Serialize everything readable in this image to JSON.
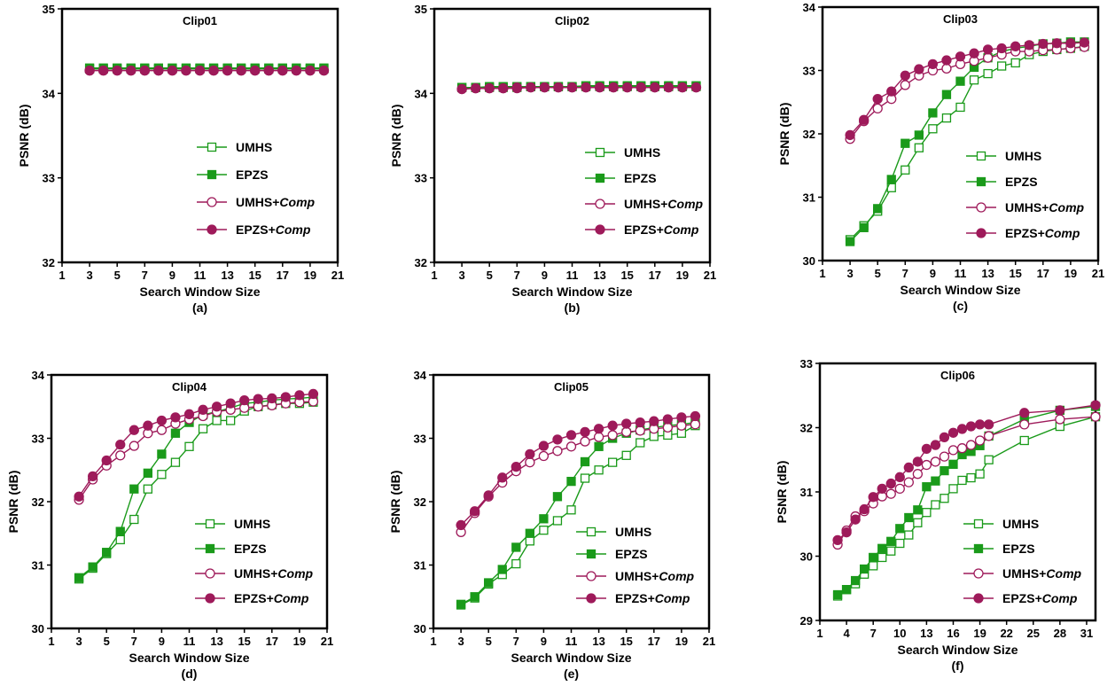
{
  "colors": {
    "green": "#1a9a1a",
    "magenta": "#9e1a5a"
  },
  "chart_data": [
    {
      "type": "line",
      "title": "Clip01",
      "caption": "(a)",
      "xlabel": "Search Window Size",
      "ylabel": "PSNR (dB)",
      "xlim": [
        1,
        21
      ],
      "ylim": [
        32,
        35
      ],
      "xticks": [
        1,
        3,
        5,
        7,
        9,
        11,
        13,
        15,
        17,
        19,
        21
      ],
      "yticks": [
        32,
        33,
        34,
        35
      ],
      "legend": {
        "placement": "center-right",
        "entries": [
          "UMHS",
          "EPZS",
          "UMHS+Comp",
          "EPZS+Comp"
        ]
      },
      "x": [
        3,
        4,
        5,
        6,
        7,
        8,
        9,
        10,
        11,
        12,
        13,
        14,
        15,
        16,
        17,
        18,
        19,
        20
      ],
      "series": [
        {
          "name": "UMHS",
          "values": [
            34.29,
            34.29,
            34.29,
            34.29,
            34.29,
            34.29,
            34.29,
            34.29,
            34.29,
            34.29,
            34.29,
            34.29,
            34.29,
            34.29,
            34.29,
            34.29,
            34.29,
            34.29
          ]
        },
        {
          "name": "EPZS",
          "values": [
            34.3,
            34.3,
            34.3,
            34.3,
            34.3,
            34.3,
            34.3,
            34.3,
            34.3,
            34.3,
            34.3,
            34.3,
            34.3,
            34.3,
            34.3,
            34.3,
            34.3,
            34.3
          ]
        },
        {
          "name": "UMHS+Comp",
          "values": [
            34.27,
            34.27,
            34.27,
            34.27,
            34.27,
            34.27,
            34.27,
            34.27,
            34.27,
            34.27,
            34.27,
            34.27,
            34.27,
            34.27,
            34.27,
            34.27,
            34.27,
            34.27
          ]
        },
        {
          "name": "EPZS+Comp",
          "values": [
            34.27,
            34.27,
            34.27,
            34.27,
            34.27,
            34.27,
            34.27,
            34.27,
            34.27,
            34.27,
            34.27,
            34.27,
            34.27,
            34.27,
            34.27,
            34.27,
            34.27,
            34.27
          ]
        }
      ]
    },
    {
      "type": "line",
      "title": "Clip02",
      "caption": "(b)",
      "xlabel": "Search Window Size",
      "ylabel": "PSNR (dB)",
      "xlim": [
        1,
        21
      ],
      "ylim": [
        32,
        35
      ],
      "xticks": [
        1,
        3,
        5,
        7,
        9,
        11,
        13,
        15,
        17,
        19,
        21
      ],
      "yticks": [
        32,
        33,
        34,
        35
      ],
      "legend": {
        "placement": "center-right",
        "entries": [
          "UMHS",
          "EPZS",
          "UMHS+Comp",
          "EPZS+Comp"
        ]
      },
      "x": [
        3,
        4,
        5,
        6,
        7,
        8,
        9,
        10,
        11,
        12,
        13,
        14,
        15,
        16,
        17,
        18,
        19,
        20
      ],
      "series": [
        {
          "name": "UMHS",
          "values": [
            34.07,
            34.07,
            34.07,
            34.07,
            34.07,
            34.08,
            34.08,
            34.08,
            34.08,
            34.08,
            34.08,
            34.08,
            34.08,
            34.08,
            34.08,
            34.08,
            34.08,
            34.08
          ]
        },
        {
          "name": "EPZS",
          "values": [
            34.07,
            34.07,
            34.08,
            34.08,
            34.08,
            34.08,
            34.08,
            34.08,
            34.08,
            34.09,
            34.09,
            34.09,
            34.09,
            34.09,
            34.09,
            34.09,
            34.09,
            34.09
          ]
        },
        {
          "name": "UMHS+Comp",
          "values": [
            34.05,
            34.06,
            34.06,
            34.06,
            34.06,
            34.07,
            34.07,
            34.07,
            34.07,
            34.07,
            34.07,
            34.07,
            34.07,
            34.07,
            34.07,
            34.07,
            34.07,
            34.07
          ]
        },
        {
          "name": "EPZS+Comp",
          "values": [
            34.05,
            34.06,
            34.06,
            34.06,
            34.07,
            34.07,
            34.07,
            34.07,
            34.07,
            34.07,
            34.07,
            34.07,
            34.07,
            34.07,
            34.07,
            34.07,
            34.07,
            34.07
          ]
        }
      ]
    },
    {
      "type": "line",
      "title": "Clip03",
      "caption": "(c)",
      "xlabel": "Search Window Size",
      "ylabel": "PSNR (dB)",
      "xlim": [
        1,
        21
      ],
      "ylim": [
        30,
        34
      ],
      "xticks": [
        1,
        3,
        5,
        7,
        9,
        11,
        13,
        15,
        17,
        19,
        21
      ],
      "yticks": [
        30,
        31,
        32,
        33,
        34
      ],
      "legend": {
        "placement": "lower-right",
        "entries": [
          "UMHS",
          "EPZS",
          "UMHS+Comp",
          "EPZS+Comp"
        ]
      },
      "x": [
        3,
        4,
        5,
        6,
        7,
        8,
        9,
        10,
        11,
        12,
        13,
        14,
        15,
        16,
        17,
        18,
        19,
        20
      ],
      "series": [
        {
          "name": "UMHS",
          "values": [
            30.33,
            30.55,
            30.78,
            31.15,
            31.43,
            31.78,
            32.08,
            32.25,
            32.42,
            32.85,
            32.95,
            33.07,
            33.12,
            33.25,
            33.3,
            33.33,
            33.35,
            33.38
          ]
        },
        {
          "name": "EPZS",
          "values": [
            30.3,
            30.52,
            30.82,
            31.28,
            31.85,
            31.98,
            32.33,
            32.62,
            32.83,
            33.05,
            33.2,
            33.3,
            33.35,
            33.38,
            33.42,
            33.43,
            33.45,
            33.45
          ]
        },
        {
          "name": "UMHS+Comp",
          "values": [
            31.92,
            32.2,
            32.4,
            32.55,
            32.77,
            32.92,
            33.0,
            33.03,
            33.1,
            33.15,
            33.2,
            33.25,
            33.3,
            33.3,
            33.32,
            33.33,
            33.35,
            33.37
          ]
        },
        {
          "name": "EPZS+Comp",
          "values": [
            31.98,
            32.22,
            32.55,
            32.67,
            32.92,
            33.02,
            33.1,
            33.16,
            33.22,
            33.27,
            33.33,
            33.35,
            33.38,
            33.4,
            33.42,
            33.43,
            33.43,
            33.44
          ]
        }
      ]
    },
    {
      "type": "line",
      "title": "Clip04",
      "caption": "(d)",
      "xlabel": "Search Window Size",
      "ylabel": "PSNR (dB)",
      "xlim": [
        1,
        21
      ],
      "ylim": [
        30,
        34
      ],
      "xticks": [
        1,
        3,
        5,
        7,
        9,
        11,
        13,
        15,
        17,
        19,
        21
      ],
      "yticks": [
        30,
        31,
        32,
        33,
        34
      ],
      "legend": {
        "placement": "lower-right",
        "entries": [
          "UMHS",
          "EPZS",
          "UMHS+Comp",
          "EPZS+Comp"
        ]
      },
      "x": [
        3,
        4,
        5,
        6,
        7,
        8,
        9,
        10,
        11,
        12,
        13,
        14,
        15,
        16,
        17,
        18,
        19,
        20
      ],
      "series": [
        {
          "name": "UMHS",
          "values": [
            30.78,
            30.95,
            31.18,
            31.4,
            31.72,
            32.2,
            32.43,
            32.62,
            32.87,
            33.15,
            33.28,
            33.28,
            33.43,
            33.5,
            33.53,
            33.55,
            33.55,
            33.57
          ]
        },
        {
          "name": "EPZS",
          "values": [
            30.8,
            30.97,
            31.2,
            31.53,
            32.2,
            32.45,
            32.75,
            33.08,
            33.25,
            33.37,
            33.42,
            33.48,
            33.55,
            33.57,
            33.6,
            33.62,
            33.63,
            33.65
          ]
        },
        {
          "name": "UMHS+Comp",
          "values": [
            32.03,
            32.35,
            32.57,
            32.73,
            32.88,
            33.08,
            33.13,
            33.23,
            33.3,
            33.35,
            33.42,
            33.45,
            33.48,
            33.5,
            33.52,
            33.55,
            33.57,
            33.58
          ]
        },
        {
          "name": "EPZS+Comp",
          "values": [
            32.08,
            32.4,
            32.65,
            32.9,
            33.13,
            33.2,
            33.28,
            33.33,
            33.38,
            33.45,
            33.5,
            33.55,
            33.6,
            33.62,
            33.63,
            33.65,
            33.68,
            33.7
          ]
        }
      ]
    },
    {
      "type": "line",
      "title": "Clip05",
      "caption": "(e)",
      "xlabel": "Search Window Size",
      "ylabel": "PSNR (dB)",
      "xlim": [
        1,
        21
      ],
      "ylim": [
        30,
        34
      ],
      "xticks": [
        1,
        3,
        5,
        7,
        9,
        11,
        13,
        15,
        17,
        19,
        21
      ],
      "yticks": [
        30,
        31,
        32,
        33,
        34
      ],
      "legend": {
        "placement": "lower-right",
        "entries": [
          "UMHS",
          "EPZS",
          "UMHS+Comp",
          "EPZS+Comp"
        ]
      },
      "x": [
        3,
        4,
        5,
        6,
        7,
        8,
        9,
        10,
        11,
        12,
        13,
        14,
        15,
        16,
        17,
        18,
        19,
        20
      ],
      "series": [
        {
          "name": "UMHS",
          "values": [
            30.37,
            30.48,
            30.7,
            30.85,
            31.02,
            31.38,
            31.55,
            31.7,
            31.87,
            32.37,
            32.5,
            32.62,
            32.73,
            32.93,
            33.03,
            33.05,
            33.08,
            33.2
          ]
        },
        {
          "name": "EPZS",
          "values": [
            30.38,
            30.5,
            30.72,
            30.93,
            31.28,
            31.5,
            31.73,
            32.08,
            32.32,
            32.63,
            32.87,
            33.0,
            33.08,
            33.13,
            33.17,
            33.2,
            33.22,
            33.25
          ]
        },
        {
          "name": "UMHS+Comp",
          "values": [
            31.52,
            31.82,
            32.08,
            32.3,
            32.48,
            32.62,
            32.72,
            32.8,
            32.87,
            32.95,
            33.02,
            33.05,
            33.1,
            33.12,
            33.15,
            33.17,
            33.2,
            33.22
          ]
        },
        {
          "name": "EPZS+Comp",
          "values": [
            31.63,
            31.85,
            32.1,
            32.38,
            32.55,
            32.75,
            32.88,
            32.98,
            33.05,
            33.1,
            33.15,
            33.2,
            33.23,
            33.25,
            33.27,
            33.3,
            33.33,
            33.35
          ]
        }
      ]
    },
    {
      "type": "line",
      "title": "Clip06",
      "caption": "(f)",
      "xlabel": "Search Window Size",
      "ylabel": "PSNR (dB)",
      "xlim": [
        1,
        32
      ],
      "ylim": [
        29,
        33
      ],
      "xticks": [
        1,
        4,
        7,
        10,
        13,
        16,
        19,
        22,
        25,
        28,
        31
      ],
      "yticks": [
        29,
        30,
        31,
        32,
        33
      ],
      "legend": {
        "placement": "lower-right",
        "entries": [
          "UMHS",
          "EPZS",
          "UMHS+Comp",
          "EPZS+Comp"
        ]
      },
      "x": [
        3,
        4,
        5,
        6,
        7,
        8,
        9,
        10,
        11,
        12,
        13,
        14,
        15,
        16,
        17,
        18,
        19,
        20,
        24,
        28,
        32
      ],
      "series": [
        {
          "name": "UMHS",
          "values": [
            29.38,
            29.48,
            29.57,
            29.72,
            29.85,
            29.98,
            30.08,
            30.2,
            30.33,
            30.52,
            30.68,
            30.8,
            30.9,
            31.05,
            31.18,
            31.22,
            31.28,
            31.5,
            31.8,
            32.02,
            32.17
          ]
        },
        {
          "name": "EPZS",
          "values": [
            29.4,
            29.48,
            29.62,
            29.8,
            29.98,
            30.12,
            30.23,
            30.43,
            30.6,
            30.72,
            31.08,
            31.17,
            31.33,
            31.43,
            31.58,
            31.63,
            31.72,
            31.87,
            32.13,
            32.27,
            32.33
          ]
        },
        {
          "name": "UMHS+Comp",
          "values": [
            30.18,
            30.4,
            30.62,
            30.7,
            30.82,
            30.93,
            30.97,
            31.05,
            31.15,
            31.28,
            31.42,
            31.47,
            31.55,
            31.65,
            31.68,
            31.73,
            31.8,
            31.87,
            32.05,
            32.13,
            32.17
          ]
        },
        {
          "name": "EPZS+Comp",
          "values": [
            30.25,
            30.37,
            30.57,
            30.73,
            30.92,
            31.05,
            31.13,
            31.23,
            31.38,
            31.47,
            31.67,
            31.73,
            31.85,
            31.92,
            31.98,
            32.02,
            32.05,
            32.05,
            32.23,
            32.27,
            32.35
          ]
        }
      ]
    }
  ]
}
